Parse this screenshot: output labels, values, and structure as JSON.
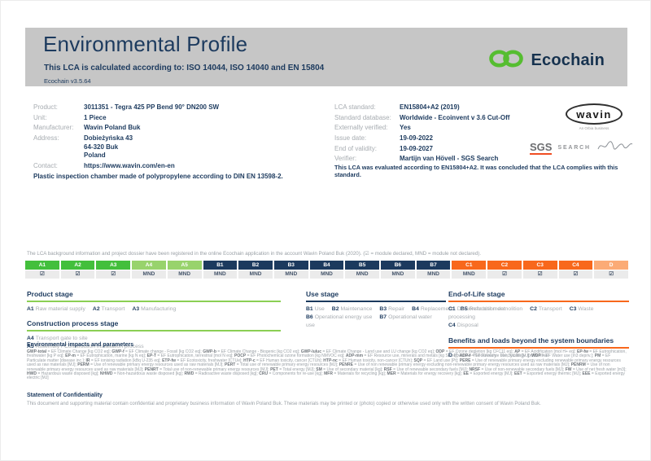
{
  "colors": {
    "navy": "#1c3a5e",
    "green": "#43bf3c",
    "green_light": "#98d36c",
    "orange": "#f8681c",
    "orange_light": "#fbab76",
    "underline_green": "#8bcf54",
    "logo_green": "#56bd31",
    "sgs_red": "#f04e23",
    "band_gray": "#c6c6c6"
  },
  "header": {
    "title": "Environmental Profile",
    "subtitle": "This LCA is calculated according to: ISO 14044, ISO 14040 and EN 15804",
    "version": "Ecochain v3.5.64",
    "logo_text": "Ecochain"
  },
  "product_info": {
    "rows": [
      {
        "label": "Product:",
        "value": "3011351 - Tegra 425 PP Bend 90° DN200 SW"
      },
      {
        "label": "Unit:",
        "value": "1 Piece"
      },
      {
        "label": "Manufacturer:",
        "value": "Wavin Poland Buk"
      },
      {
        "label": "Address:",
        "value": "Dobieżyńska 43\n64-320 Buk\nPoland"
      },
      {
        "label": "Contact:",
        "value": "https://www.wavin.com/en-en"
      }
    ],
    "description": "Plastic inspection chamber made of polypropylene according to DIN EN 13598-2."
  },
  "lca_info": {
    "rows": [
      {
        "label": "LCA standard:",
        "value": "EN15804+A2 (2019)"
      },
      {
        "label": "Standard database:",
        "value": "Worldwide - Ecoinvent v 3.6 Cut-Off"
      },
      {
        "label": "Externally verified:",
        "value": "Yes"
      },
      {
        "label": "Issue date:",
        "value": "19-09-2022"
      },
      {
        "label": "End of validity:",
        "value": "19-09-2027"
      },
      {
        "label": "Verifier:",
        "value": "Martijn van Hövell - SGS Search"
      }
    ],
    "evaluation": "This LCA was evaluated according to EN15804+A2. It was concluded that the LCA complies with this standard."
  },
  "logos": {
    "wavin": "wavin",
    "wavin_sub": "An Orbia business",
    "sgs": "SGS",
    "search": "SEARCH"
  },
  "modules": {
    "note": "The LCA background information and project dossier have been registered in the online Ecochain application in the account Wavin Poland Buk (2020). (☑ = module declared, MND = module not declared).",
    "cells": [
      {
        "code": "A1",
        "tone": "green",
        "mark": "☑"
      },
      {
        "code": "A2",
        "tone": "green",
        "mark": "☑"
      },
      {
        "code": "A3",
        "tone": "green",
        "mark": "☑"
      },
      {
        "code": "A4",
        "tone": "green-light",
        "mark": "MND"
      },
      {
        "code": "A5",
        "tone": "green-light",
        "mark": "MND"
      },
      {
        "code": "B1",
        "tone": "navy",
        "mark": "MND"
      },
      {
        "code": "B2",
        "tone": "navy",
        "mark": "MND"
      },
      {
        "code": "B3",
        "tone": "navy",
        "mark": "MND"
      },
      {
        "code": "B4",
        "tone": "navy",
        "mark": "MND"
      },
      {
        "code": "B5",
        "tone": "navy",
        "mark": "MND"
      },
      {
        "code": "B6",
        "tone": "navy",
        "mark": "MND"
      },
      {
        "code": "B7",
        "tone": "navy",
        "mark": "MND"
      },
      {
        "code": "C1",
        "tone": "orange",
        "mark": "MND"
      },
      {
        "code": "C2",
        "tone": "orange",
        "mark": "☑"
      },
      {
        "code": "C3",
        "tone": "orange",
        "mark": "☑"
      },
      {
        "code": "C4",
        "tone": "orange",
        "mark": "☑"
      },
      {
        "code": "D",
        "tone": "orange-light",
        "mark": "☑"
      }
    ]
  },
  "stages": [
    {
      "title": "Product stage",
      "rule": "green",
      "lines": [
        [
          {
            "code": "A1",
            "label": "Raw material supply"
          },
          {
            "code": "A2",
            "label": "Transport"
          },
          {
            "code": "A3",
            "label": "Manufacturing"
          }
        ]
      ]
    },
    {
      "title": "Construction process stage",
      "rule": "green",
      "lines": [
        [
          {
            "code": "A4",
            "label": "Transport gate to site"
          }
        ],
        [
          {
            "code": "A5",
            "label": "Assembly / Construction installation process"
          }
        ]
      ]
    },
    {
      "title": "Use stage",
      "rule": "navy",
      "lines": [
        [
          {
            "code": "B1",
            "label": "Use"
          },
          {
            "code": "B2",
            "label": "Maintenance"
          },
          {
            "code": "B3",
            "label": "Repair"
          },
          {
            "code": "B4",
            "label": "Replacement"
          },
          {
            "code": "B5",
            "label": "Refurbishment"
          }
        ],
        [
          {
            "code": "B6",
            "label": "Operational energy use"
          },
          {
            "code": "B7",
            "label": "Operational water use"
          }
        ]
      ]
    },
    {
      "title": "End-of-Life stage",
      "rule": "orange",
      "lines": [
        [
          {
            "code": "C1",
            "label": "De-construction demolition"
          },
          {
            "code": "C2",
            "label": "Transport"
          },
          {
            "code": "C3",
            "label": "Waste processing"
          }
        ],
        [
          {
            "code": "C4",
            "label": "Disposal"
          }
        ]
      ]
    },
    {
      "title": "Benefits and loads beyond the system boundaries",
      "rule": "orange",
      "lines": [
        [
          {
            "code": "D",
            "label": "Reuse- Recovery- Recycling- potential"
          }
        ]
      ]
    }
  ],
  "impacts": {
    "heading": "Environmental impacts and parameters",
    "abbreviations": [
      {
        "k": "GWP-total",
        "v": "EF Climate Change [kg CO2 eq]"
      },
      {
        "k": "GWP-f",
        "v": "EF Climate change - Fossil [kg CO2 eq]"
      },
      {
        "k": "GWP-b",
        "v": "EF Climate Change - Biogenic [kg CO2 eq]"
      },
      {
        "k": "GWP-luluc",
        "v": "EF Climate Change - Land use and LU change [kg CO2 eq]"
      },
      {
        "k": "ODP",
        "v": "EF Ozone depletion [kg CFC11 eq]"
      },
      {
        "k": "AP",
        "v": "EF Acidification [mol H+ eq]"
      },
      {
        "k": "EP-fw",
        "v": "EF Eutrophication, freshwater [kg P eq]"
      },
      {
        "k": "EP-m",
        "v": "EF Eutrophication, marine [kg N eq]"
      },
      {
        "k": "EP-T",
        "v": "EF Eutrophication, terrestrial [mol N eq]"
      },
      {
        "k": "POCP",
        "v": "EF Photochemical ozone formation [kg NMVOC eq]"
      },
      {
        "k": "ADP-mm",
        "v": "EF Resource use, minerals and metals [kg Sb eq]"
      },
      {
        "k": "ADP-f",
        "v": "EF Resource use, fossils [MJ]"
      },
      {
        "k": "WDP",
        "v": "EF Water use [m3 depriv.]"
      },
      {
        "k": "PM",
        "v": "EF Particulate matter [disease inc.]"
      },
      {
        "k": "IR",
        "v": "EF ionising radiation [kBq U-235 eq]"
      },
      {
        "k": "ETP-fw",
        "v": "EF Ecotoxicity, freshwater [CTUe]"
      },
      {
        "k": "HTP-c",
        "v": "EF Human toxicity, cancer [CTUh]"
      },
      {
        "k": "HTP-nc",
        "v": "EF Human toxicity, non-cancer [CTUh]"
      },
      {
        "k": "SQP",
        "v": "EF Land use [Pt]"
      },
      {
        "k": "PERE",
        "v": "Use of renewable primary energy excluding renewable primary energy resources used as raw materials [MJ]"
      },
      {
        "k": "PERM",
        "v": "Use of renewable primary energy resources used as raw materials [MJ]"
      },
      {
        "k": "PERT",
        "v": "Total use of renewable primary energy resources [MJ]"
      },
      {
        "k": "PENRE",
        "v": "Use of non renewable primary energy excluding non-renewable primary energy resources used as raw materials [MJ]"
      },
      {
        "k": "PENRM",
        "v": "Use of non renewable primary energy resources used as raw materials [MJ]"
      },
      {
        "k": "PENRT",
        "v": "Total use of non-renewable primary energy resources [MJ]"
      },
      {
        "k": "PET",
        "v": "Total energy [MJ]"
      },
      {
        "k": "SM",
        "v": "Use of secondary material [kg]"
      },
      {
        "k": "RSF",
        "v": "Use of renewable secondary fuels [MJ]"
      },
      {
        "k": "NRSF",
        "v": "Use of non-renewable secondary fuels [MJ]"
      },
      {
        "k": "FW",
        "v": "Use of net fresh water [m3]"
      },
      {
        "k": "HWD",
        "v": "Hazardous waste disposed [kg]"
      },
      {
        "k": "NHWD",
        "v": "Non-hazardous waste disposed [kg]"
      },
      {
        "k": "RWD",
        "v": "Radioactive waste disposed [kg]"
      },
      {
        "k": "CRU",
        "v": "Components for re-use [kg]"
      },
      {
        "k": "MFR",
        "v": "Materials for recycling [kg]"
      },
      {
        "k": "MER",
        "v": "Materials for energy recovery [kg]"
      },
      {
        "k": "EE",
        "v": "Exported energy [MJ]"
      },
      {
        "k": "EET",
        "v": "Exported energy thermic [MJ]"
      },
      {
        "k": "EEE",
        "v": "Exported energy electric [MJ]"
      }
    ]
  },
  "confidentiality": {
    "heading": "Statement of Confidentiality",
    "text": "This document and supporting material contain confidential and proprietary business information of Wavin Poland Buk. These materials may be printed or (photo) copied or otherwise used only with the written consent of Wavin Poland Buk."
  }
}
